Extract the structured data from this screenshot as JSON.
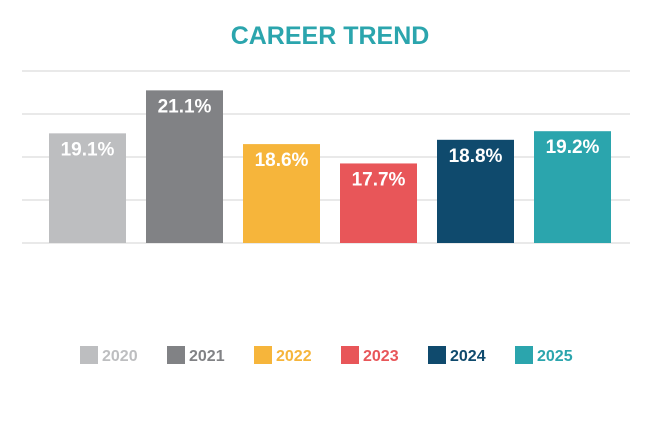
{
  "chart_data": {
    "type": "bar",
    "title": "CAREER TREND",
    "categories": [
      "2020",
      "2021",
      "2022",
      "2023",
      "2024",
      "2025"
    ],
    "values": [
      19.1,
      21.1,
      18.6,
      17.7,
      18.8,
      19.2
    ],
    "value_labels": [
      "19.1%",
      "21.1%",
      "18.6%",
      "17.7%",
      "18.8%",
      "19.2%"
    ],
    "colors": [
      "#bdbec0",
      "#818285",
      "#f6b53b",
      "#e85659",
      "#0f4a6d",
      "#2ba5ad"
    ],
    "title_color": "#2ba5ad",
    "ylim": [
      14,
      22
    ],
    "grid": true,
    "legend": "bottom"
  }
}
